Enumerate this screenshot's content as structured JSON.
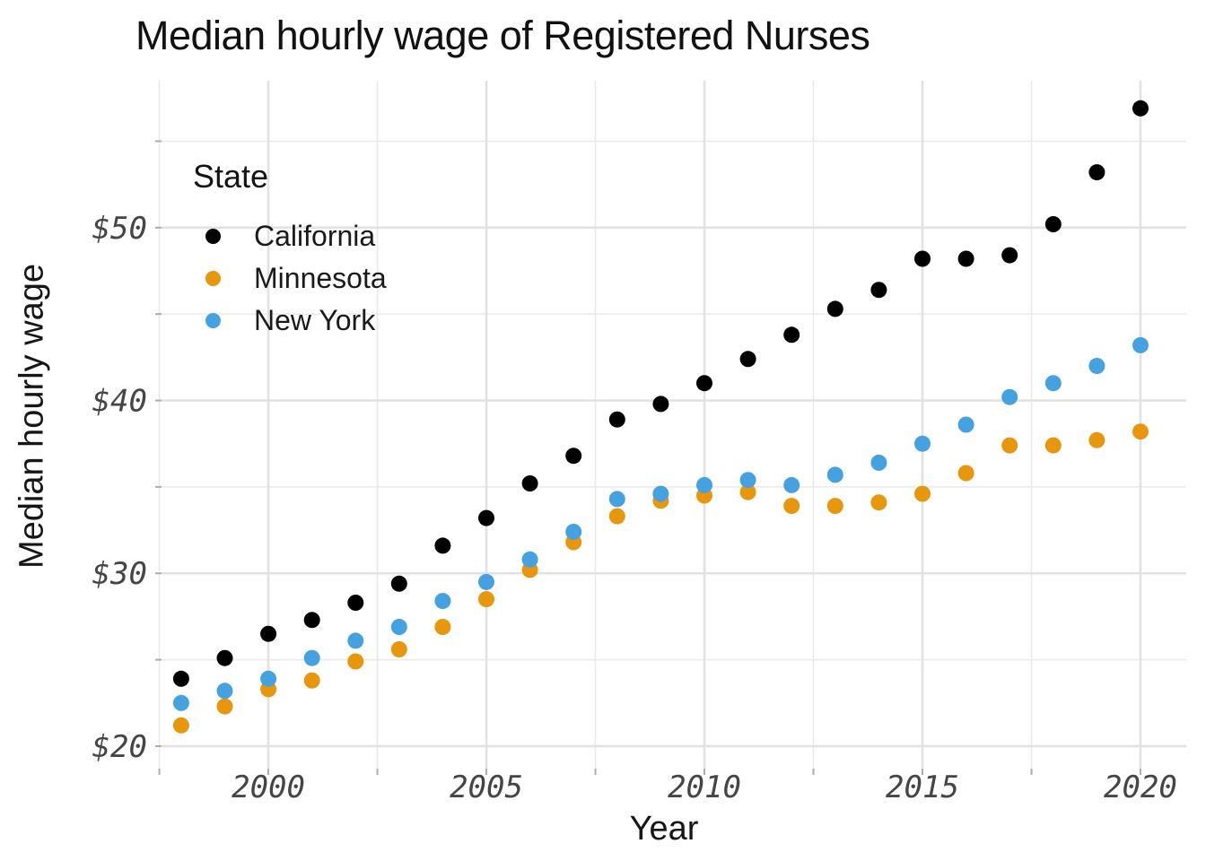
{
  "chart_data": {
    "type": "scatter",
    "title": "Median hourly wage of Registered Nurses",
    "grid": true,
    "x": [
      1998,
      1999,
      2000,
      2001,
      2002,
      2003,
      2004,
      2005,
      2006,
      2007,
      2008,
      2009,
      2010,
      2011,
      2012,
      2013,
      2014,
      2015,
      2016,
      2017,
      2018,
      2019,
      2020
    ],
    "series": [
      {
        "name": "California",
        "color": "#000000",
        "values": [
          23.9,
          25.1,
          26.5,
          27.3,
          28.3,
          29.4,
          31.6,
          33.2,
          35.2,
          36.8,
          38.9,
          39.8,
          41.0,
          42.4,
          43.8,
          45.3,
          46.4,
          48.2,
          48.2,
          48.4,
          50.2,
          53.2,
          56.9
        ]
      },
      {
        "name": "Minnesota",
        "color": "#e8960c",
        "values": [
          21.2,
          22.3,
          23.3,
          23.8,
          24.9,
          25.6,
          26.9,
          28.5,
          30.2,
          31.8,
          33.3,
          34.2,
          34.5,
          34.7,
          33.9,
          33.9,
          34.1,
          34.6,
          35.8,
          37.4,
          37.4,
          37.7,
          38.2
        ]
      },
      {
        "name": "New York",
        "color": "#46a1e0",
        "values": [
          22.5,
          23.2,
          23.9,
          25.1,
          26.1,
          26.9,
          28.4,
          29.5,
          30.8,
          32.4,
          34.3,
          34.6,
          35.1,
          35.4,
          35.1,
          35.7,
          36.4,
          37.5,
          38.6,
          40.2,
          41.0,
          42.0,
          43.2
        ]
      }
    ],
    "x_axis": {
      "label": "Year",
      "tick_labels": [
        "2000",
        "2005",
        "2010",
        "2015",
        "2020"
      ],
      "major_ticks": [
        2000,
        2005,
        2010,
        2015,
        2020
      ],
      "minor_ticks": [
        1997.5,
        2002.5,
        2007.5,
        2012.5,
        2017.5
      ],
      "range": [
        1997.55,
        2021.05
      ]
    },
    "y_axis": {
      "label": "Median hourly wage",
      "tick_labels": [
        "$20",
        "$30",
        "$40",
        "$50"
      ],
      "major_ticks": [
        20,
        30,
        40,
        50
      ],
      "minor_ticks": [
        25,
        35,
        45,
        55
      ],
      "range": [
        18.7,
        58.5
      ]
    },
    "legend": {
      "title": "State",
      "position": "inside top-left",
      "entries": [
        "California",
        "Minnesota",
        "New York"
      ]
    },
    "marker": "filled-circle"
  }
}
